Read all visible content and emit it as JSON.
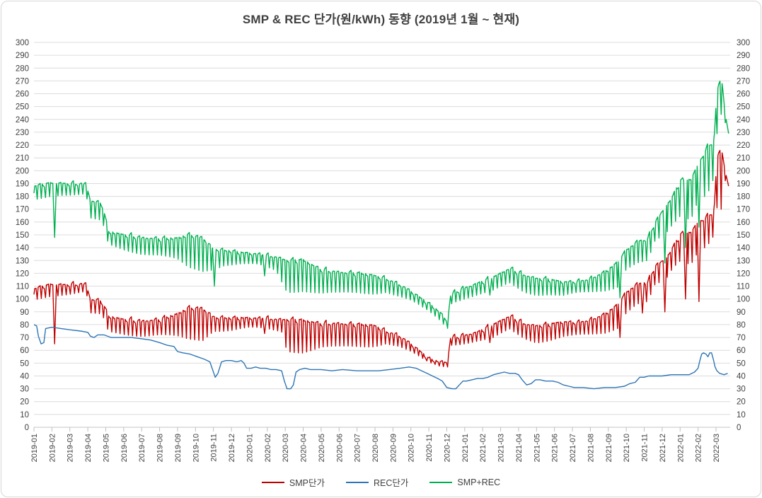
{
  "chart_data": {
    "type": "line",
    "title": "SMP & REC 단가(원/kWh) 동향 (2019년 1월 ~ 현재)",
    "legend_position": "bottom",
    "grid": "horizontal",
    "dual_axis": true,
    "y_axis": {
      "min": 0,
      "max": 300,
      "step": 10
    },
    "x_labels": [
      "2019-01",
      "2019-02",
      "2019-03",
      "2019-04",
      "2019-05",
      "2019-06",
      "2019-07",
      "2019-08",
      "2019-09",
      "2019-10",
      "2019-11",
      "2019-12",
      "2020-01",
      "2020-02",
      "2020-03",
      "2020-04",
      "2020-05",
      "2020-06",
      "2020-07",
      "2020-08",
      "2020-09",
      "2020-10",
      "2020-11",
      "2020-12",
      "2021-01",
      "2021-02",
      "2021-03",
      "2021-04",
      "2021-05",
      "2021-06",
      "2021-07",
      "2021-08",
      "2021-09",
      "2021-10",
      "2021-11",
      "2021-12",
      "2022-01",
      "2022-02",
      "2022-03"
    ],
    "x_unit": "months since 2019-01 (fractions are days within month)",
    "x_end": 38.7,
    "teeth_per_month": 4.33,
    "series": [
      {
        "name": "SMP단가",
        "color": "#C00000",
        "style": "weekly-sawtooth",
        "envelope": [
          [
            0,
            108,
            99
          ],
          [
            0.9,
            111,
            103
          ],
          [
            1.5,
            111,
            104
          ],
          [
            2.9,
            112,
            105
          ],
          [
            3.15,
            100,
            88
          ],
          [
            3.8,
            98,
            87
          ],
          [
            4.15,
            86,
            74
          ],
          [
            5,
            84,
            73
          ],
          [
            6,
            83,
            72
          ],
          [
            7,
            84,
            72
          ],
          [
            8,
            88,
            70
          ],
          [
            8.6,
            93,
            68
          ],
          [
            9.4,
            93,
            68
          ],
          [
            10,
            86,
            76
          ],
          [
            11,
            85,
            76
          ],
          [
            12,
            85,
            77
          ],
          [
            13,
            85,
            76
          ],
          [
            13.8,
            84,
            75
          ],
          [
            14.1,
            84,
            60
          ],
          [
            15,
            83,
            59
          ],
          [
            16,
            81,
            62
          ],
          [
            17,
            81,
            62
          ],
          [
            18,
            80,
            63
          ],
          [
            19,
            79,
            64
          ],
          [
            19.6,
            75,
            66
          ],
          [
            20.3,
            72,
            63
          ],
          [
            21,
            65,
            58
          ],
          [
            21.6,
            58,
            53
          ],
          [
            22,
            53,
            50
          ],
          [
            22.6,
            51,
            48
          ],
          [
            23.05,
            51,
            48
          ],
          [
            23.2,
            70,
            65
          ],
          [
            24,
            72,
            66
          ],
          [
            24.7,
            74,
            67
          ],
          [
            25.5,
            79,
            68
          ],
          [
            26.5,
            87,
            76
          ],
          [
            27.3,
            81,
            70
          ],
          [
            28,
            79,
            67
          ],
          [
            28.7,
            80,
            68
          ],
          [
            29.5,
            82,
            70
          ],
          [
            30.3,
            82,
            71
          ],
          [
            31,
            84,
            72
          ],
          [
            31.8,
            88,
            74
          ],
          [
            32.5,
            95,
            78
          ],
          [
            33,
            105,
            90
          ],
          [
            33.6,
            112,
            96
          ],
          [
            34.2,
            113,
            97
          ],
          [
            34.6,
            126,
            110
          ],
          [
            35.2,
            131,
            114
          ],
          [
            35.6,
            140,
            124
          ],
          [
            36,
            150,
            130
          ],
          [
            36.6,
            152,
            128
          ],
          [
            37,
            160,
            138
          ],
          [
            37.5,
            164,
            142
          ],
          [
            37.9,
            170,
            150
          ],
          [
            38.05,
            210,
            170
          ],
          [
            38.2,
            216,
            196
          ],
          [
            38.35,
            214,
            150
          ],
          [
            38.5,
            201,
            192
          ],
          [
            38.6,
            194,
            188
          ],
          [
            38.7,
            189,
            187
          ]
        ],
        "events": [
          [
            1.15,
            65
          ],
          [
            12.85,
            73
          ],
          [
            25.4,
            66
          ],
          [
            32.65,
            70
          ],
          [
            33.9,
            89
          ],
          [
            35.15,
            90
          ],
          [
            36.3,
            100
          ],
          [
            37.05,
            98
          ]
        ]
      },
      {
        "name": "REC단가",
        "color": "#2E75B6",
        "style": "step",
        "points": [
          [
            0,
            80
          ],
          [
            0.15,
            79
          ],
          [
            0.25,
            71
          ],
          [
            0.4,
            65
          ],
          [
            0.55,
            66
          ],
          [
            0.65,
            77
          ],
          [
            1,
            78
          ],
          [
            1.5,
            77
          ],
          [
            2,
            76
          ],
          [
            2.6,
            75
          ],
          [
            3,
            74
          ],
          [
            3.15,
            71
          ],
          [
            3.35,
            70
          ],
          [
            3.55,
            72
          ],
          [
            3.9,
            72
          ],
          [
            4.3,
            70
          ],
          [
            4.8,
            70
          ],
          [
            5.4,
            70
          ],
          [
            6,
            69
          ],
          [
            6.5,
            68
          ],
          [
            7,
            66
          ],
          [
            7.4,
            64
          ],
          [
            7.8,
            63
          ],
          [
            8,
            59
          ],
          [
            8.3,
            58
          ],
          [
            8.7,
            57
          ],
          [
            9.1,
            55
          ],
          [
            9.5,
            53
          ],
          [
            9.8,
            51
          ],
          [
            9.95,
            45
          ],
          [
            10.1,
            39
          ],
          [
            10.25,
            42
          ],
          [
            10.45,
            51
          ],
          [
            10.7,
            52
          ],
          [
            11,
            52
          ],
          [
            11.3,
            51
          ],
          [
            11.55,
            52
          ],
          [
            11.7,
            50
          ],
          [
            11.85,
            46
          ],
          [
            12.1,
            46
          ],
          [
            12.35,
            47
          ],
          [
            12.6,
            46
          ],
          [
            12.9,
            46
          ],
          [
            13.2,
            45
          ],
          [
            13.5,
            45
          ],
          [
            13.8,
            44
          ],
          [
            13.95,
            36
          ],
          [
            14.1,
            30
          ],
          [
            14.3,
            30
          ],
          [
            14.45,
            33
          ],
          [
            14.6,
            43
          ],
          [
            14.8,
            45
          ],
          [
            15.1,
            46
          ],
          [
            15.4,
            45
          ],
          [
            16,
            45
          ],
          [
            16.6,
            44
          ],
          [
            17.2,
            45
          ],
          [
            18,
            44
          ],
          [
            18.6,
            44
          ],
          [
            19.2,
            44
          ],
          [
            19.8,
            45
          ],
          [
            20.4,
            46
          ],
          [
            20.9,
            47
          ],
          [
            21.3,
            46
          ],
          [
            21.6,
            44
          ],
          [
            21.9,
            42
          ],
          [
            22.2,
            40
          ],
          [
            22.5,
            38
          ],
          [
            22.75,
            36
          ],
          [
            23,
            31
          ],
          [
            23.3,
            30
          ],
          [
            23.5,
            30
          ],
          [
            23.7,
            33
          ],
          [
            23.9,
            36
          ],
          [
            24.1,
            36
          ],
          [
            24.4,
            37
          ],
          [
            24.7,
            38
          ],
          [
            25,
            38
          ],
          [
            25.3,
            39
          ],
          [
            25.6,
            41
          ],
          [
            25.9,
            42
          ],
          [
            26.2,
            43
          ],
          [
            26.5,
            42
          ],
          [
            26.8,
            42
          ],
          [
            27,
            41
          ],
          [
            27.2,
            37
          ],
          [
            27.45,
            33
          ],
          [
            27.7,
            34
          ],
          [
            27.95,
            37
          ],
          [
            28.2,
            37
          ],
          [
            28.5,
            36
          ],
          [
            28.9,
            36
          ],
          [
            29.2,
            35
          ],
          [
            29.5,
            33
          ],
          [
            29.8,
            32
          ],
          [
            30.1,
            31
          ],
          [
            30.6,
            31
          ],
          [
            31.2,
            30
          ],
          [
            31.8,
            31
          ],
          [
            32.4,
            31
          ],
          [
            32.9,
            32
          ],
          [
            33.2,
            34
          ],
          [
            33.5,
            35
          ],
          [
            33.75,
            39
          ],
          [
            34,
            39
          ],
          [
            34.25,
            40
          ],
          [
            34.6,
            40
          ],
          [
            35,
            40
          ],
          [
            35.5,
            41
          ],
          [
            36,
            41
          ],
          [
            36.5,
            41
          ],
          [
            36.8,
            43
          ],
          [
            37,
            46
          ],
          [
            37.1,
            52
          ],
          [
            37.2,
            57
          ],
          [
            37.3,
            58
          ],
          [
            37.45,
            57
          ],
          [
            37.55,
            55
          ],
          [
            37.65,
            58
          ],
          [
            37.75,
            58
          ],
          [
            37.85,
            53
          ],
          [
            37.95,
            47
          ],
          [
            38.05,
            44
          ],
          [
            38.2,
            42
          ],
          [
            38.45,
            41
          ],
          [
            38.65,
            42
          ]
        ]
      },
      {
        "name": "SMP+REC",
        "color": "#00B050",
        "style": "weekly-sawtooth",
        "envelope": [
          [
            0,
            188,
            177
          ],
          [
            0.9,
            190,
            181
          ],
          [
            1.5,
            190,
            182
          ],
          [
            2.9,
            190,
            181
          ],
          [
            3.15,
            177,
            162
          ],
          [
            3.8,
            174,
            160
          ],
          [
            4.15,
            152,
            142
          ],
          [
            5,
            150,
            139
          ],
          [
            6,
            148,
            136
          ],
          [
            7,
            147,
            134
          ],
          [
            8,
            147,
            130
          ],
          [
            8.6,
            150,
            124
          ],
          [
            9.4,
            148,
            122
          ],
          [
            10,
            139,
            124
          ],
          [
            10.6,
            138,
            127
          ],
          [
            11.5,
            136,
            127
          ],
          [
            12.5,
            135,
            126
          ],
          [
            13.5,
            133,
            122
          ],
          [
            14.1,
            130,
            106
          ],
          [
            15,
            130,
            107
          ],
          [
            16,
            123,
            104
          ],
          [
            17,
            121,
            104
          ],
          [
            18,
            120,
            105
          ],
          [
            19,
            118,
            105
          ],
          [
            19.6,
            116,
            106
          ],
          [
            20.3,
            112,
            102
          ],
          [
            21,
            106,
            98
          ],
          [
            21.6,
            100,
            93
          ],
          [
            22,
            96,
            90
          ],
          [
            22.6,
            90,
            84
          ],
          [
            23.05,
            82,
            78
          ],
          [
            23.2,
            103,
            97
          ],
          [
            23.5,
            106,
            99
          ],
          [
            24,
            109,
            101
          ],
          [
            24.7,
            112,
            103
          ],
          [
            25.5,
            116,
            105
          ],
          [
            26.5,
            124,
            112
          ],
          [
            27.3,
            119,
            106
          ],
          [
            28,
            116,
            104
          ],
          [
            28.7,
            115,
            104
          ],
          [
            29.5,
            113,
            102
          ],
          [
            30.3,
            114,
            104
          ],
          [
            31,
            116,
            105
          ],
          [
            31.8,
            121,
            107
          ],
          [
            32.5,
            128,
            110
          ],
          [
            33,
            138,
            124
          ],
          [
            33.6,
            145,
            128
          ],
          [
            34.2,
            147,
            129
          ],
          [
            34.6,
            160,
            144
          ],
          [
            35.2,
            172,
            150
          ],
          [
            35.6,
            180,
            158
          ],
          [
            36,
            192,
            165
          ],
          [
            36.6,
            193,
            163
          ],
          [
            37,
            205,
            178
          ],
          [
            37.5,
            218,
            182
          ],
          [
            37.9,
            225,
            195
          ],
          [
            38.05,
            262,
            228
          ],
          [
            38.2,
            270,
            248
          ],
          [
            38.35,
            268,
            240
          ],
          [
            38.5,
            246,
            238
          ],
          [
            38.6,
            237,
            230
          ],
          [
            38.7,
            230,
            228
          ]
        ],
        "events": [
          [
            1.15,
            148
          ],
          [
            10.05,
            110
          ],
          [
            12.85,
            118
          ],
          [
            25.4,
            103
          ],
          [
            32.65,
            101
          ],
          [
            35.15,
            128
          ],
          [
            36.3,
            140
          ],
          [
            37.05,
            156
          ]
        ]
      }
    ],
    "colors": {
      "grid": "#DCDCDC",
      "baseline": "#C6C6C6",
      "tick": "#BFBFBF",
      "axis_text": "#404040",
      "title_text": "#404040",
      "frame_border": "#D7D7D7"
    }
  }
}
